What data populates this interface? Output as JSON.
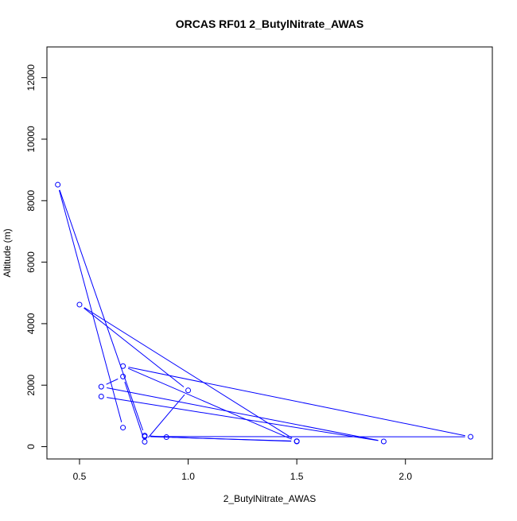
{
  "chart_data": {
    "type": "line",
    "title": "ORCAS RF01 2_ButylNitrate_AWAS",
    "xlabel": "2_ButylNitrate_AWAS",
    "ylabel": "Altitude (m)",
    "xlim": [
      0.35,
      2.4
    ],
    "ylim": [
      -400,
      13000
    ],
    "xticks": [
      0.5,
      1.0,
      1.5,
      2.0
    ],
    "xtick_labels": [
      "0.5",
      "1.0",
      "1.5",
      "2.0"
    ],
    "yticks": [
      0,
      2000,
      4000,
      6000,
      8000,
      10000,
      12000
    ],
    "ytick_labels": [
      "0",
      "2000",
      "4000",
      "6000",
      "8000",
      "10000",
      "12000"
    ],
    "grid": false,
    "series_color": "#0000ff",
    "series": [
      {
        "x": [
          0.7,
          0.4,
          0.8,
          0.9,
          1.5,
          0.7,
          2.3,
          0.8,
          1.5,
          0.5,
          1.0,
          0.8,
          0.7,
          0.6,
          1.9,
          0.6
        ],
        "y": [
          620,
          8520,
          360,
          310,
          170,
          2620,
          320,
          330,
          180,
          4620,
          1830,
          160,
          2280,
          1950,
          170,
          1630
        ]
      }
    ]
  }
}
